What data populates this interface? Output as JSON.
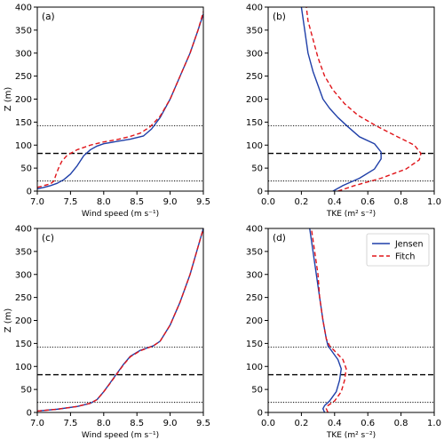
{
  "chart_data": [
    {
      "type": "line",
      "panel_label": "(a)",
      "xlabel": "Wind speed (m s⁻¹)",
      "ylabel": "Z (m)",
      "xlim": [
        7.0,
        9.5
      ],
      "ylim": [
        0,
        400
      ],
      "xticks": [
        "7.0",
        "7.5",
        "8.0",
        "8.5",
        "9.0",
        "9.5"
      ],
      "yticks": [
        "0",
        "50",
        "100",
        "150",
        "200",
        "250",
        "300",
        "350",
        "400"
      ],
      "hlines": [
        {
          "y": 22,
          "style": "dotted"
        },
        {
          "y": 82,
          "style": "dashed"
        },
        {
          "y": 142,
          "style": "dotted"
        }
      ],
      "series": [
        {
          "name": "Jensen",
          "color": "#1f3fa8",
          "dash": "solid",
          "points": [
            [
              7.0,
              5
            ],
            [
              7.1,
              8
            ],
            [
              7.2,
              12
            ],
            [
              7.3,
              17
            ],
            [
              7.4,
              25
            ],
            [
              7.5,
              37
            ],
            [
              7.6,
              55
            ],
            [
              7.7,
              77
            ],
            [
              7.8,
              90
            ],
            [
              7.9,
              98
            ],
            [
              8.0,
              103
            ],
            [
              8.2,
              108
            ],
            [
              8.4,
              113
            ],
            [
              8.6,
              120
            ],
            [
              8.72,
              135
            ],
            [
              8.85,
              160
            ],
            [
              9.0,
              200
            ],
            [
              9.15,
              250
            ],
            [
              9.3,
              300
            ],
            [
              9.42,
              350
            ],
            [
              9.5,
              385
            ]
          ]
        },
        {
          "name": "Fitch",
          "color": "#e0151a",
          "dash": "dashed",
          "points": [
            [
              7.0,
              8
            ],
            [
              7.1,
              12
            ],
            [
              7.2,
              16
            ],
            [
              7.25,
              22
            ],
            [
              7.28,
              35
            ],
            [
              7.32,
              50
            ],
            [
              7.37,
              65
            ],
            [
              7.45,
              78
            ],
            [
              7.6,
              90
            ],
            [
              7.8,
              100
            ],
            [
              8.0,
              107
            ],
            [
              8.2,
              112
            ],
            [
              8.4,
              119
            ],
            [
              8.55,
              126
            ],
            [
              8.7,
              140
            ],
            [
              8.85,
              163
            ],
            [
              9.0,
              200
            ],
            [
              9.15,
              250
            ],
            [
              9.3,
              300
            ],
            [
              9.42,
              350
            ],
            [
              9.5,
              390
            ]
          ]
        }
      ]
    },
    {
      "type": "line",
      "panel_label": "(b)",
      "xlabel": "TKE (m² s⁻²)",
      "ylabel": "",
      "xlim": [
        0.0,
        1.0
      ],
      "ylim": [
        0,
        400
      ],
      "xticks": [
        "0.0",
        "0.2",
        "0.4",
        "0.6",
        "0.8",
        "1.0"
      ],
      "yticks": [
        "0",
        "50",
        "100",
        "150",
        "200",
        "250",
        "300",
        "350",
        "400"
      ],
      "hlines": [
        {
          "y": 22,
          "style": "dotted"
        },
        {
          "y": 82,
          "style": "dashed"
        },
        {
          "y": 142,
          "style": "dotted"
        }
      ],
      "series": [
        {
          "name": "Jensen",
          "color": "#1f3fa8",
          "dash": "solid",
          "points": [
            [
              0.39,
              0
            ],
            [
              0.45,
              12
            ],
            [
              0.55,
              28
            ],
            [
              0.64,
              48
            ],
            [
              0.68,
              70
            ],
            [
              0.68,
              85
            ],
            [
              0.64,
              103
            ],
            [
              0.55,
              118
            ],
            [
              0.48,
              140
            ],
            [
              0.42,
              160
            ],
            [
              0.37,
              180
            ],
            [
              0.33,
              200
            ],
            [
              0.3,
              230
            ],
            [
              0.27,
              260
            ],
            [
              0.24,
              300
            ],
            [
              0.22,
              350
            ],
            [
              0.2,
              400
            ]
          ]
        },
        {
          "name": "Fitch",
          "color": "#e0151a",
          "dash": "dashed",
          "points": [
            [
              0.42,
              0
            ],
            [
              0.52,
              12
            ],
            [
              0.68,
              28
            ],
            [
              0.83,
              48
            ],
            [
              0.91,
              68
            ],
            [
              0.92,
              82
            ],
            [
              0.88,
              100
            ],
            [
              0.78,
              118
            ],
            [
              0.66,
              140
            ],
            [
              0.54,
              165
            ],
            [
              0.46,
              190
            ],
            [
              0.39,
              220
            ],
            [
              0.34,
              250
            ],
            [
              0.3,
              290
            ],
            [
              0.27,
              330
            ],
            [
              0.24,
              370
            ],
            [
              0.23,
              400
            ]
          ]
        }
      ]
    },
    {
      "type": "line",
      "panel_label": "(c)",
      "xlabel": "Wind speed (m s⁻¹)",
      "ylabel": "Z (m)",
      "xlim": [
        7.0,
        9.5
      ],
      "ylim": [
        0,
        400
      ],
      "xticks": [
        "7.0",
        "7.5",
        "8.0",
        "8.5",
        "9.0",
        "9.5"
      ],
      "yticks": [
        "0",
        "50",
        "100",
        "150",
        "200",
        "250",
        "300",
        "350",
        "400"
      ],
      "hlines": [
        {
          "y": 22,
          "style": "dotted"
        },
        {
          "y": 82,
          "style": "dashed"
        },
        {
          "y": 142,
          "style": "dotted"
        }
      ],
      "series": [
        {
          "name": "Jensen",
          "color": "#1f3fa8",
          "dash": "solid",
          "points": [
            [
              7.0,
              3
            ],
            [
              7.3,
              7
            ],
            [
              7.6,
              13
            ],
            [
              7.8,
              20
            ],
            [
              7.9,
              28
            ],
            [
              8.0,
              45
            ],
            [
              8.1,
              65
            ],
            [
              8.2,
              85
            ],
            [
              8.3,
              105
            ],
            [
              8.4,
              122
            ],
            [
              8.55,
              135
            ],
            [
              8.75,
              145
            ],
            [
              8.85,
              155
            ],
            [
              9.0,
              190
            ],
            [
              9.15,
              240
            ],
            [
              9.3,
              300
            ],
            [
              9.42,
              360
            ],
            [
              9.5,
              400
            ]
          ]
        },
        {
          "name": "Fitch",
          "color": "#e0151a",
          "dash": "dashed",
          "points": [
            [
              7.0,
              3
            ],
            [
              7.3,
              7
            ],
            [
              7.6,
              13
            ],
            [
              7.8,
              20
            ],
            [
              7.9,
              28
            ],
            [
              8.0,
              45
            ],
            [
              8.1,
              64
            ],
            [
              8.2,
              84
            ],
            [
              8.3,
              104
            ],
            [
              8.4,
              121
            ],
            [
              8.55,
              134
            ],
            [
              8.75,
              145
            ],
            [
              8.85,
              155
            ],
            [
              9.0,
              190
            ],
            [
              9.15,
              240
            ],
            [
              9.3,
              300
            ],
            [
              9.42,
              360
            ],
            [
              9.5,
              400
            ]
          ]
        }
      ]
    },
    {
      "type": "line",
      "panel_label": "(d)",
      "xlabel": "TKE (m² s⁻²)",
      "ylabel": "",
      "xlim": [
        0.0,
        1.0
      ],
      "ylim": [
        0,
        400
      ],
      "xticks": [
        "0.0",
        "0.2",
        "0.4",
        "0.6",
        "0.8",
        "1.0"
      ],
      "yticks": [
        "0",
        "50",
        "100",
        "150",
        "200",
        "250",
        "300",
        "350",
        "400"
      ],
      "hlines": [
        {
          "y": 22,
          "style": "dotted"
        },
        {
          "y": 82,
          "style": "dashed"
        },
        {
          "y": 142,
          "style": "dotted"
        }
      ],
      "legend": {
        "position": "upper right",
        "entries": [
          "Jensen",
          "Fitch"
        ]
      },
      "series": [
        {
          "name": "Jensen",
          "color": "#1f3fa8",
          "dash": "solid",
          "points": [
            [
              0.34,
              0
            ],
            [
              0.33,
              8
            ],
            [
              0.34,
              15
            ],
            [
              0.37,
              25
            ],
            [
              0.41,
              45
            ],
            [
              0.43,
              70
            ],
            [
              0.44,
              95
            ],
            [
              0.42,
              115
            ],
            [
              0.39,
              130
            ],
            [
              0.36,
              145
            ],
            [
              0.35,
              160
            ],
            [
              0.33,
              200
            ],
            [
              0.31,
              250
            ],
            [
              0.29,
              300
            ],
            [
              0.27,
              350
            ],
            [
              0.25,
              400
            ]
          ]
        },
        {
          "name": "Fitch",
          "color": "#e0151a",
          "dash": "dashed",
          "points": [
            [
              0.36,
              0
            ],
            [
              0.35,
              8
            ],
            [
              0.36,
              15
            ],
            [
              0.4,
              25
            ],
            [
              0.44,
              45
            ],
            [
              0.46,
              70
            ],
            [
              0.47,
              95
            ],
            [
              0.45,
              115
            ],
            [
              0.41,
              130
            ],
            [
              0.37,
              145
            ],
            [
              0.35,
              160
            ],
            [
              0.33,
              200
            ],
            [
              0.31,
              250
            ],
            [
              0.3,
              300
            ],
            [
              0.28,
              350
            ],
            [
              0.26,
              400
            ]
          ]
        }
      ]
    }
  ]
}
